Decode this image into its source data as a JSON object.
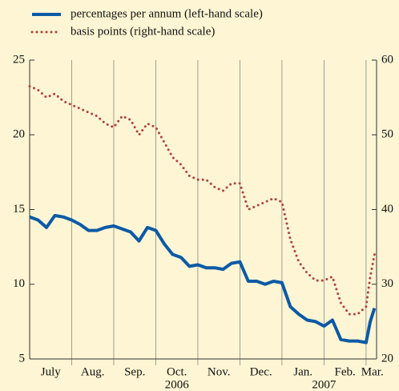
{
  "chart_data": {
    "type": "line",
    "x": [
      0,
      0.2,
      0.4,
      0.6,
      0.8,
      1.0,
      1.2,
      1.4,
      1.6,
      1.8,
      2.0,
      2.2,
      2.4,
      2.6,
      2.8,
      3.0,
      3.2,
      3.4,
      3.6,
      3.8,
      4.0,
      4.2,
      4.4,
      4.6,
      4.8,
      5.0,
      5.2,
      5.4,
      5.6,
      5.8,
      6.0,
      6.2,
      6.4,
      6.6,
      6.8,
      7.0,
      7.2,
      7.4,
      7.6,
      7.8,
      8.0,
      8.1,
      8.2
    ],
    "series": [
      {
        "name": "percentages per annum (left-hand scale)",
        "color": "#0b5aa6",
        "style": "solid",
        "values": [
          14.5,
          14.3,
          13.8,
          14.6,
          14.5,
          14.3,
          14.0,
          13.6,
          13.6,
          13.8,
          13.9,
          13.7,
          13.5,
          12.9,
          13.8,
          13.6,
          12.7,
          12.0,
          11.8,
          11.2,
          11.3,
          11.1,
          11.1,
          11.0,
          11.4,
          11.5,
          10.2,
          10.2,
          10.0,
          10.2,
          10.1,
          8.5,
          8.0,
          7.6,
          7.5,
          7.2,
          7.6,
          6.3,
          6.2,
          6.2,
          6.1,
          7.5,
          8.4
        ]
      },
      {
        "name": "basis points (right-hand scale)",
        "color": "#b0413e",
        "style": "dotted",
        "axis": "y2",
        "values": [
          56.5,
          56,
          55,
          55.5,
          54.5,
          54,
          53.5,
          53,
          52.5,
          51.5,
          51,
          52.5,
          52,
          50,
          51.5,
          51,
          49,
          47,
          46,
          44.5,
          44,
          44,
          43,
          42.5,
          43.5,
          43.5,
          40,
          40.5,
          41,
          41.5,
          41,
          36,
          33,
          31.5,
          30.5,
          30.5,
          31,
          27.5,
          26,
          26,
          27,
          31,
          34
        ]
      }
    ],
    "xlim": [
      0,
      8.25
    ],
    "xticks": [
      {
        "value": 0.5,
        "label": "July"
      },
      {
        "value": 1.5,
        "label": "Aug."
      },
      {
        "value": 2.5,
        "label": "Sep."
      },
      {
        "value": 3.5,
        "label": "Oct."
      },
      {
        "value": 4.5,
        "label": "Nov."
      },
      {
        "value": 5.5,
        "label": "Dec."
      },
      {
        "value": 6.5,
        "label": "Jan."
      },
      {
        "value": 7.5,
        "label": "Feb."
      },
      {
        "value": 8.15,
        "label": "Mar."
      }
    ],
    "xgrid": [
      1,
      2,
      3,
      4,
      5,
      6,
      7,
      8
    ],
    "year_labels": [
      {
        "value": 3.5,
        "label": "2006"
      },
      {
        "value": 7,
        "label": "2007"
      }
    ],
    "ylim": [
      5,
      25
    ],
    "yticks": [
      5,
      10,
      15,
      20,
      25
    ],
    "y2lim": [
      20,
      60
    ],
    "y2ticks": [
      20,
      30,
      40,
      50,
      60
    ]
  }
}
